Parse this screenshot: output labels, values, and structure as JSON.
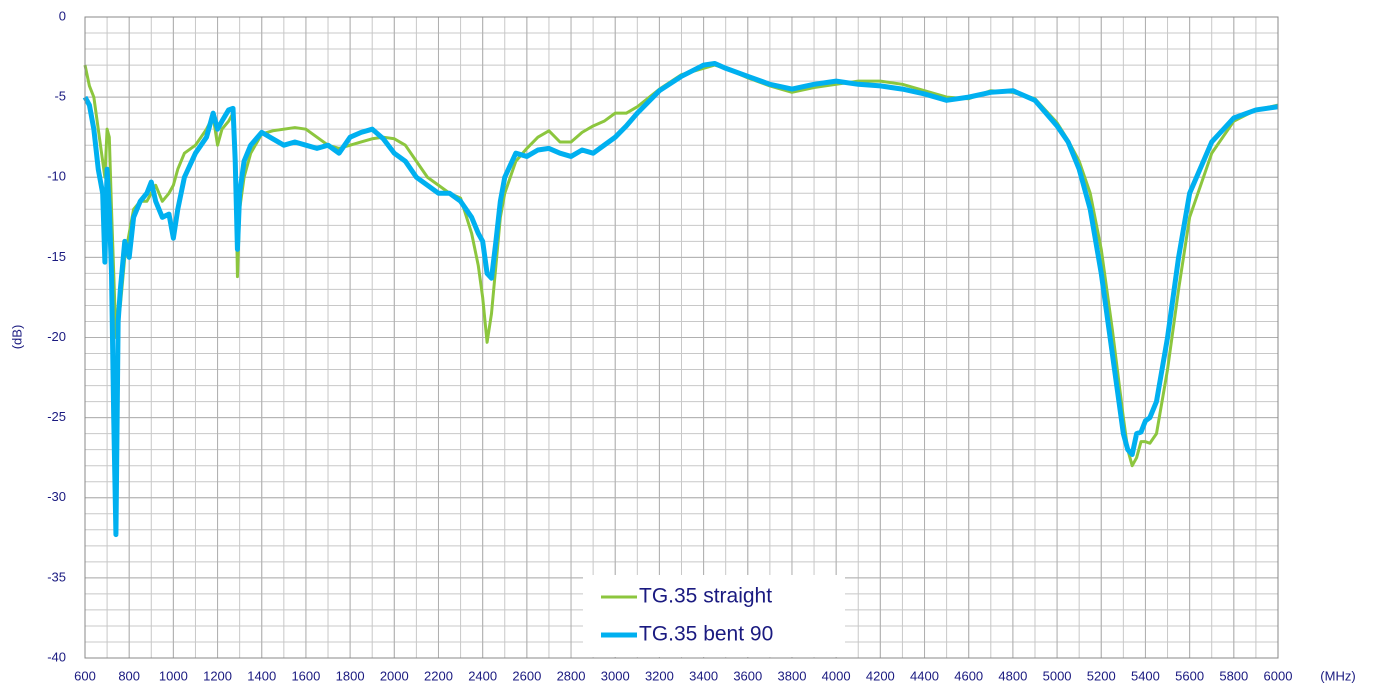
{
  "chart_data": {
    "type": "line",
    "x_label": "(MHz)",
    "y_label": "(dB)",
    "x": [
      600,
      620,
      640,
      660,
      680,
      690,
      700,
      710,
      720,
      730,
      740,
      750,
      760,
      780,
      800,
      820,
      850,
      880,
      900,
      920,
      950,
      980,
      1000,
      1020,
      1050,
      1100,
      1150,
      1180,
      1200,
      1220,
      1250,
      1270,
      1280,
      1290,
      1300,
      1320,
      1350,
      1400,
      1450,
      1500,
      1550,
      1600,
      1650,
      1700,
      1750,
      1800,
      1850,
      1900,
      1950,
      2000,
      2050,
      2100,
      2150,
      2200,
      2250,
      2300,
      2350,
      2380,
      2400,
      2420,
      2440,
      2460,
      2480,
      2500,
      2550,
      2600,
      2650,
      2700,
      2750,
      2800,
      2850,
      2900,
      2950,
      3000,
      3050,
      3100,
      3200,
      3300,
      3400,
      3450,
      3500,
      3600,
      3700,
      3800,
      3900,
      4000,
      4100,
      4200,
      4300,
      4400,
      4500,
      4600,
      4700,
      4800,
      4900,
      5000,
      5050,
      5100,
      5150,
      5200,
      5250,
      5300,
      5320,
      5340,
      5360,
      5380,
      5400,
      5420,
      5450,
      5500,
      5550,
      5600,
      5700,
      5800,
      5900,
      6000
    ],
    "series": [
      {
        "name": "TG.35 straight",
        "color": "#8cc63e",
        "width": 3,
        "values": [
          -3,
          -4.3,
          -5,
          -7,
          -9,
          -10,
          -7,
          -7.5,
          -12,
          -16,
          -20,
          -19,
          -18,
          -15,
          -13.5,
          -12,
          -11.5,
          -11.5,
          -11,
          -10.5,
          -11.5,
          -11,
          -10.5,
          -9.5,
          -8.5,
          -8,
          -7,
          -6.2,
          -8,
          -7,
          -6.5,
          -6,
          -8,
          -16.2,
          -12,
          -10,
          -8.5,
          -7.3,
          -7.1,
          -7,
          -6.9,
          -7,
          -7.5,
          -8,
          -8.2,
          -8,
          -7.8,
          -7.6,
          -7.5,
          -7.6,
          -8,
          -9,
          -10,
          -10.5,
          -11,
          -11.3,
          -13.5,
          -15.5,
          -17.5,
          -20.3,
          -18.5,
          -15.5,
          -12.5,
          -11,
          -9,
          -8.2,
          -7.5,
          -7.1,
          -7.8,
          -7.8,
          -7.2,
          -6.8,
          -6.5,
          -6,
          -6,
          -5.6,
          -4.5,
          -3.6,
          -3.2,
          -3,
          -3.2,
          -3.8,
          -4.3,
          -4.7,
          -4.4,
          -4.2,
          -4,
          -4,
          -4.2,
          -4.6,
          -5,
          -5.1,
          -4.6,
          -4.7,
          -5.1,
          -6.6,
          -7.7,
          -9,
          -11,
          -14.5,
          -19.5,
          -25,
          -27,
          -28,
          -27.5,
          -26.5,
          -26.5,
          -26.6,
          -26,
          -22,
          -17,
          -12.5,
          -8.5,
          -6.5,
          -5.8,
          -5.5
        ]
      },
      {
        "name": "TG.35 bent 90",
        "color": "#00b0f0",
        "width": 5,
        "values": [
          -5,
          -5.5,
          -7,
          -9.5,
          -11,
          -15.3,
          -9.5,
          -12,
          -16,
          -25,
          -32.3,
          -19,
          -17,
          -14,
          -15,
          -12.5,
          -11.5,
          -11,
          -10.3,
          -11.5,
          -12.5,
          -12.3,
          -13.8,
          -12,
          -10,
          -8.5,
          -7.5,
          -6,
          -7,
          -6.5,
          -5.8,
          -5.7,
          -9,
          -14.5,
          -11,
          -9,
          -8,
          -7.2,
          -7.6,
          -8,
          -7.8,
          -8,
          -8.2,
          -8,
          -8.5,
          -7.5,
          -7.2,
          -7,
          -7.6,
          -8.5,
          -9,
          -10,
          -10.5,
          -11,
          -11,
          -11.5,
          -12.5,
          -13.5,
          -14,
          -16,
          -16.3,
          -14,
          -11.5,
          -10,
          -8.5,
          -8.7,
          -8.3,
          -8.2,
          -8.5,
          -8.7,
          -8.3,
          -8.5,
          -8,
          -7.5,
          -6.8,
          -6,
          -4.6,
          -3.7,
          -3,
          -2.9,
          -3.2,
          -3.7,
          -4.2,
          -4.5,
          -4.2,
          -4,
          -4.2,
          -4.3,
          -4.5,
          -4.8,
          -5.2,
          -5,
          -4.7,
          -4.6,
          -5.2,
          -6.8,
          -7.8,
          -9.5,
          -12,
          -16,
          -21,
          -26,
          -27,
          -27.3,
          -26,
          -25.9,
          -25.2,
          -25,
          -24,
          -20,
          -15,
          -11,
          -7.8,
          -6.3,
          -5.8,
          -5.6
        ]
      }
    ],
    "xlim": [
      600,
      6000
    ],
    "ylim": [
      -40,
      0
    ],
    "xticks": [
      600,
      800,
      1000,
      1200,
      1400,
      1600,
      1800,
      2000,
      2200,
      2400,
      2600,
      2800,
      3000,
      3200,
      3400,
      3600,
      3800,
      4000,
      4200,
      4400,
      4600,
      4800,
      5000,
      5200,
      5400,
      5600,
      5800,
      6000
    ],
    "yticks": [
      0,
      -5,
      -10,
      -15,
      -20,
      -25,
      -30,
      -35,
      -40
    ],
    "grid": true,
    "minor_grid": {
      "x": 100,
      "y": 1
    },
    "legend": "bottom"
  }
}
